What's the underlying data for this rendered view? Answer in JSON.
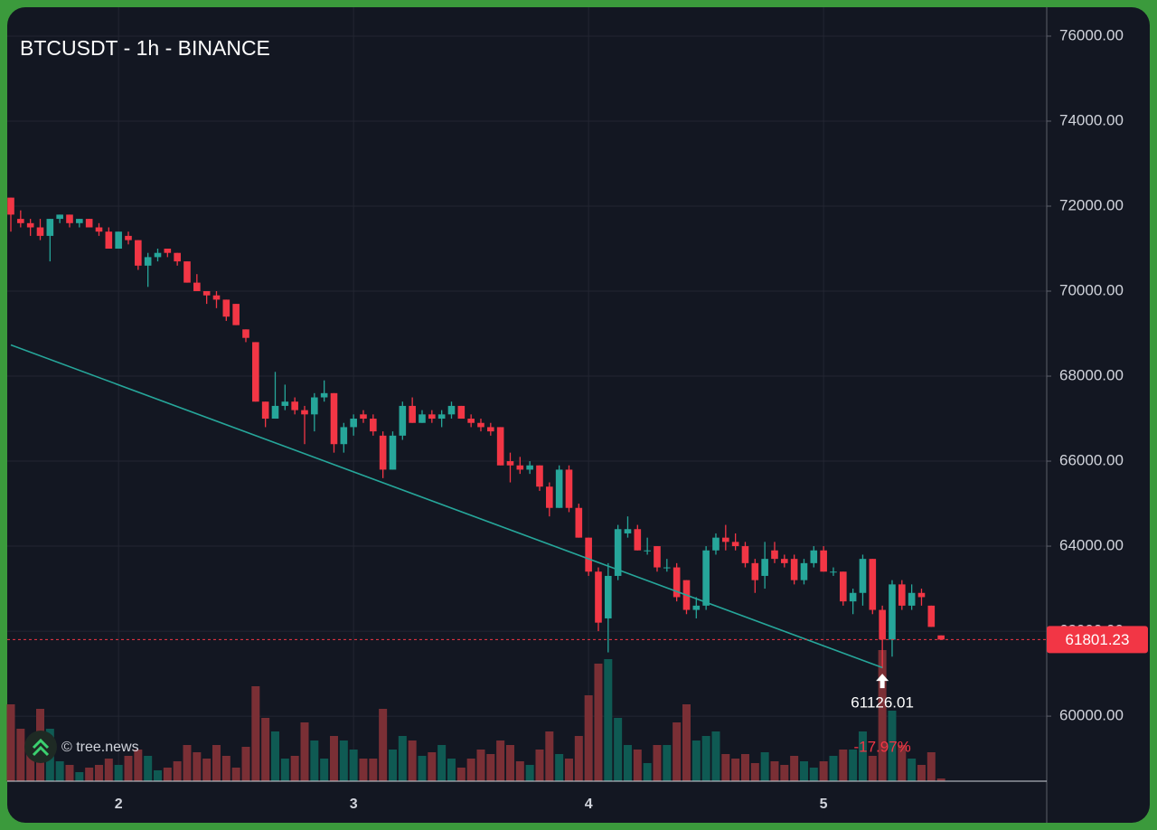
{
  "chart_data": {
    "type": "candlestick",
    "title": "BTCUSDT - 1h - BINANCE",
    "watermark": "© tree.news",
    "categories": [
      null,
      null,
      null,
      null,
      null,
      null,
      null,
      null,
      null,
      null,
      null,
      "2",
      null,
      null,
      null,
      null,
      null,
      null,
      null,
      null,
      null,
      null,
      null,
      null,
      null,
      null,
      null,
      null,
      null,
      null,
      null,
      null,
      null,
      null,
      null,
      "3",
      null,
      null,
      null,
      null,
      null,
      null,
      null,
      null,
      null,
      null,
      null,
      null,
      null,
      null,
      null,
      null,
      null,
      null,
      null,
      null,
      null,
      null,
      null,
      "4",
      null,
      null,
      null,
      null,
      null,
      null,
      null,
      null,
      null,
      null,
      null,
      null,
      null,
      null,
      null,
      null,
      null,
      null,
      null,
      null,
      null,
      null,
      null,
      "5",
      null,
      null,
      null,
      null,
      null,
      null,
      null,
      null,
      null,
      null,
      null,
      null
    ],
    "open": [
      72200,
      71700,
      71600,
      71500,
      71300,
      71700,
      71800,
      71600,
      71700,
      71500,
      71400,
      71000,
      71300,
      71200,
      70600,
      70800,
      71000,
      70900,
      70700,
      70200,
      70000,
      69900,
      69800,
      69700,
      69100,
      68800,
      67400,
      67000,
      67300,
      67400,
      67200,
      67100,
      67500,
      67600,
      66400,
      66800,
      67100,
      67000,
      66600,
      65800,
      66600,
      67300,
      66900,
      67100,
      67000,
      67100,
      67300,
      67000,
      66900,
      66800,
      66800,
      66000,
      65900,
      65800,
      65900,
      65400,
      64900,
      65800,
      64900,
      64200,
      63400,
      62300,
      63300,
      64300,
      64400,
      63900,
      64000,
      63500,
      63500,
      63200,
      62500,
      62600,
      63900,
      64200,
      64100,
      64000,
      63600,
      63300,
      63900,
      63700,
      63700,
      63200,
      63600,
      63900,
      63400,
      63400,
      62700,
      62900,
      63700,
      62500,
      61800,
      63100,
      62600,
      62900,
      62600,
      61900
    ],
    "high": [
      72200,
      71900,
      71700,
      71700,
      71700,
      71800,
      71800,
      71700,
      71700,
      71600,
      71500,
      71400,
      71400,
      71200,
      70900,
      71000,
      71000,
      70900,
      70700,
      70400,
      70000,
      70000,
      69800,
      69700,
      69100,
      68800,
      67400,
      68100,
      67800,
      67500,
      67300,
      67600,
      67900,
      67600,
      66900,
      67100,
      67200,
      67100,
      66700,
      66700,
      67400,
      67500,
      67200,
      67200,
      67200,
      67400,
      67300,
      67100,
      67000,
      66900,
      66800,
      66200,
      66100,
      66000,
      65900,
      65500,
      65900,
      65900,
      65000,
      64200,
      63500,
      63600,
      64500,
      64700,
      64500,
      64200,
      64000,
      63700,
      63600,
      63200,
      62800,
      64000,
      64300,
      64500,
      64300,
      64100,
      63700,
      64100,
      64100,
      63800,
      63800,
      63700,
      64000,
      64000,
      63500,
      63400,
      63000,
      63800,
      63700,
      62600,
      63200,
      63200,
      63100,
      63000,
      62600,
      61900
    ],
    "low": [
      71400,
      71500,
      71300,
      71200,
      70700,
      71600,
      71500,
      71500,
      71500,
      71300,
      71000,
      71000,
      71100,
      70500,
      70100,
      70700,
      70800,
      70600,
      70200,
      70000,
      69700,
      69600,
      69300,
      69200,
      68800,
      67400,
      66800,
      67000,
      67200,
      67100,
      66400,
      66700,
      67400,
      66200,
      66200,
      66600,
      66900,
      66600,
      65600,
      65800,
      66500,
      66900,
      66900,
      66900,
      66800,
      67000,
      67000,
      66800,
      66700,
      66600,
      65900,
      65500,
      65700,
      65700,
      65300,
      64700,
      64900,
      64800,
      64200,
      63300,
      62000,
      61500,
      63200,
      64200,
      63900,
      63800,
      63400,
      63400,
      62700,
      62400,
      62300,
      62500,
      63800,
      63900,
      63900,
      63500,
      62900,
      63000,
      63600,
      63500,
      63100,
      63100,
      63500,
      63400,
      63300,
      62600,
      62400,
      62600,
      62400,
      61126.01,
      61400,
      62500,
      62500,
      62600,
      62100,
      61800
    ],
    "close": [
      71800,
      71600,
      71500,
      71300,
      71700,
      71800,
      71600,
      71700,
      71500,
      71400,
      71000,
      71400,
      71200,
      70600,
      70800,
      70900,
      70900,
      70700,
      70200,
      70000,
      69900,
      69800,
      69400,
      69200,
      68900,
      67400,
      67000,
      67300,
      67400,
      67200,
      67100,
      67500,
      67600,
      66400,
      66800,
      67000,
      67000,
      66700,
      65800,
      66600,
      67300,
      66900,
      67100,
      67000,
      67100,
      67300,
      67000,
      66900,
      66800,
      66700,
      65900,
      65900,
      65800,
      65900,
      65400,
      64900,
      65800,
      64900,
      64200,
      63400,
      62200,
      63300,
      64400,
      64400,
      63900,
      63900,
      63500,
      63500,
      62800,
      62500,
      62600,
      63900,
      64200,
      64100,
      64000,
      63600,
      63200,
      63700,
      63700,
      63600,
      63200,
      63600,
      63900,
      63400,
      63400,
      62700,
      62900,
      63700,
      62500,
      61800,
      63100,
      62600,
      62900,
      62800,
      62100,
      61801.23
    ],
    "volume": [
      85,
      58,
      32,
      80,
      58,
      22,
      18,
      10,
      15,
      18,
      25,
      18,
      28,
      35,
      28,
      12,
      15,
      22,
      40,
      32,
      25,
      40,
      28,
      15,
      38,
      105,
      70,
      55,
      25,
      28,
      65,
      45,
      25,
      50,
      45,
      35,
      25,
      25,
      80,
      35,
      50,
      45,
      28,
      32,
      40,
      25,
      15,
      25,
      35,
      30,
      45,
      40,
      22,
      18,
      35,
      55,
      30,
      25,
      50,
      95,
      130,
      135,
      70,
      40,
      35,
      20,
      40,
      40,
      65,
      85,
      45,
      50,
      55,
      30,
      25,
      30,
      20,
      32,
      22,
      18,
      28,
      22,
      15,
      22,
      28,
      35,
      35,
      55,
      28,
      145,
      78,
      40,
      25,
      18,
      32,
      3
    ],
    "up_color": "#26a69a",
    "down_color": "#f23645",
    "volume_up_color": "#0f5a53",
    "volume_down_color": "#7a2f35",
    "ylim": [
      58470,
      76680
    ],
    "yticks": [
      {
        "value": 60000,
        "label": "60000.00"
      },
      {
        "value": 62000,
        "label": "62000.00"
      },
      {
        "value": 64000,
        "label": "64000.00"
      },
      {
        "value": 66000,
        "label": "66000.00"
      },
      {
        "value": 68000,
        "label": "68000.00"
      },
      {
        "value": 70000,
        "label": "70000.00"
      },
      {
        "value": 72000,
        "label": "72000.00"
      },
      {
        "value": 74000,
        "label": "74000.00"
      },
      {
        "value": 76000,
        "label": "76000.00"
      }
    ],
    "grid": true,
    "last_price": 61801.23,
    "trendline": {
      "x": [
        0,
        89
      ],
      "y": [
        68734,
        61142
      ],
      "color": "#26a69a"
    },
    "annotation": {
      "index": 89,
      "label": "61126.01",
      "change": {
        "value": -17.97,
        "label": "-17.97%"
      }
    }
  }
}
